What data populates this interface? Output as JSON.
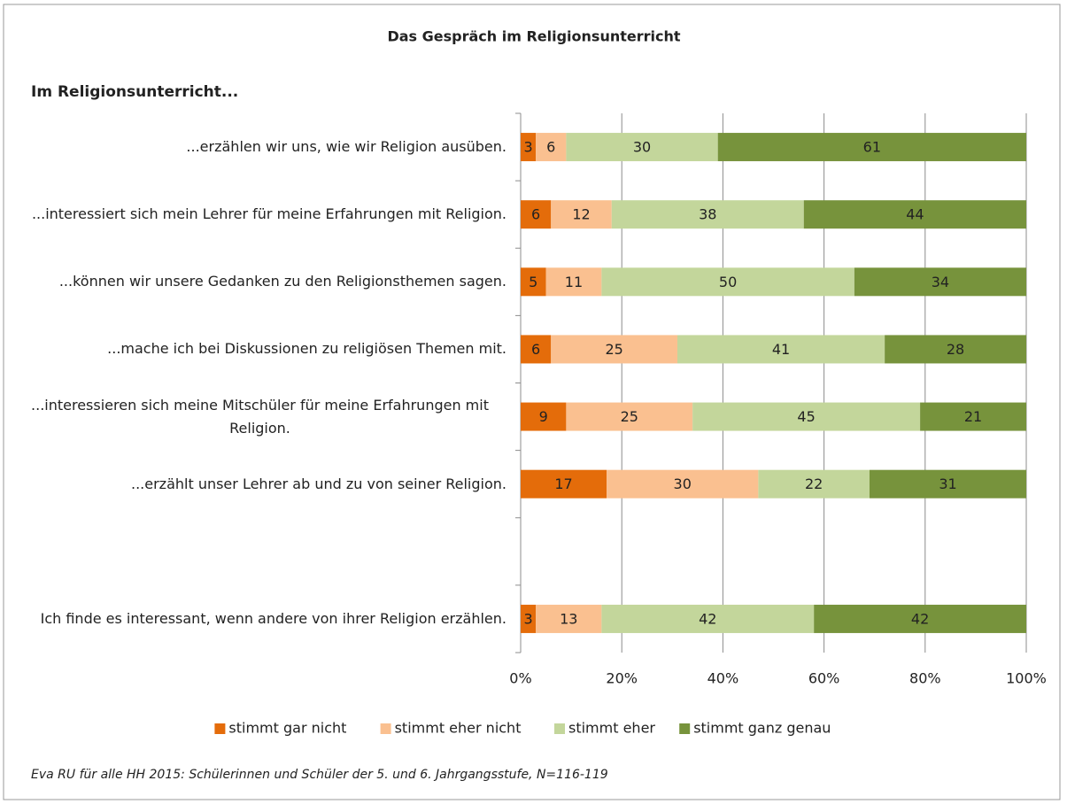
{
  "chart_data": {
    "type": "bar",
    "orientation": "horizontal",
    "stacked": true,
    "title": "Das Gespräch im Religionsunterricht",
    "subtitle": "Im Religionsunterricht...",
    "footnote": "Eva RU für alle HH 2015: Schülerinnen und Schüler der 5. und 6. Jahrgangsstufe, N=116-119",
    "categories": [
      "...erzählen wir uns, wie wir Religion ausüben.",
      "...interessiert sich mein Lehrer für meine Erfahrungen mit Religion.",
      "...können wir unsere Gedanken zu den Religionsthemen sagen.",
      "...mache ich bei Diskussionen zu religiösen Themen mit.",
      "...interessieren sich meine Mitschüler für meine Erfahrungen mit Religion.",
      "...erzählt unser Lehrer ab und zu von seiner Religion.",
      null,
      "Ich finde es interessant, wenn andere von ihrer Religion erzählen."
    ],
    "series": [
      {
        "name": "stimmt gar nicht",
        "color": "#e46c0a",
        "values": [
          3,
          6,
          5,
          6,
          9,
          17,
          null,
          3
        ]
      },
      {
        "name": "stimmt eher nicht",
        "color": "#fac090",
        "values": [
          6,
          12,
          11,
          25,
          25,
          30,
          null,
          13
        ]
      },
      {
        "name": "stimmt eher",
        "color": "#c3d69b",
        "values": [
          30,
          38,
          50,
          41,
          45,
          22,
          null,
          42
        ]
      },
      {
        "name": "stimmt ganz genau",
        "color": "#77933c",
        "values": [
          61,
          44,
          34,
          28,
          21,
          31,
          null,
          42
        ]
      }
    ],
    "xlim": [
      0,
      100
    ],
    "xticks": [
      {
        "value": 0,
        "label": "0%"
      },
      {
        "value": 20,
        "label": "20%"
      },
      {
        "value": 40,
        "label": "40%"
      },
      {
        "value": 60,
        "label": "60%"
      },
      {
        "value": 80,
        "label": "80%"
      },
      {
        "value": 100,
        "label": "100%"
      }
    ],
    "grid": true,
    "legend": "bottom"
  }
}
